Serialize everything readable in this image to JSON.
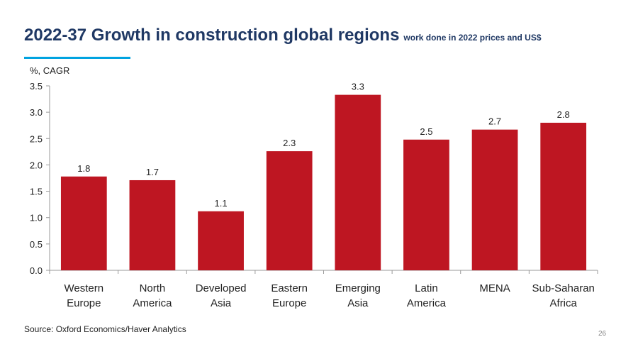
{
  "slide": {
    "title": "2022-37 Growth in construction global regions",
    "subtitle": "work done in 2022 prices and US$",
    "source": "Source: Oxford Economics/Haver Analytics",
    "page_number": "26",
    "accent_color": "#00a3e0",
    "title_color": "#1f3864"
  },
  "chart_data": {
    "type": "bar",
    "ylabel": "%, CAGR",
    "ylim": [
      0,
      3.5
    ],
    "yticks": [
      "0.0",
      "0.5",
      "1.0",
      "1.5",
      "2.0",
      "2.5",
      "3.0",
      "3.5"
    ],
    "categories": [
      [
        "Western",
        "Europe"
      ],
      [
        "North",
        "America"
      ],
      [
        "Developed",
        "Asia"
      ],
      [
        "Eastern",
        "Europe"
      ],
      [
        "Emerging",
        "Asia"
      ],
      [
        "Latin",
        "America"
      ],
      [
        "MENA"
      ],
      [
        "Sub-Saharan",
        "Africa"
      ]
    ],
    "values": [
      1.78,
      1.71,
      1.12,
      2.26,
      3.33,
      2.48,
      2.67,
      2.8
    ],
    "labels": [
      "1.8",
      "1.7",
      "1.1",
      "2.3",
      "3.3",
      "2.5",
      "2.7",
      "2.8"
    ],
    "bar_color": "#be1622",
    "grid": false,
    "legend": "none"
  }
}
